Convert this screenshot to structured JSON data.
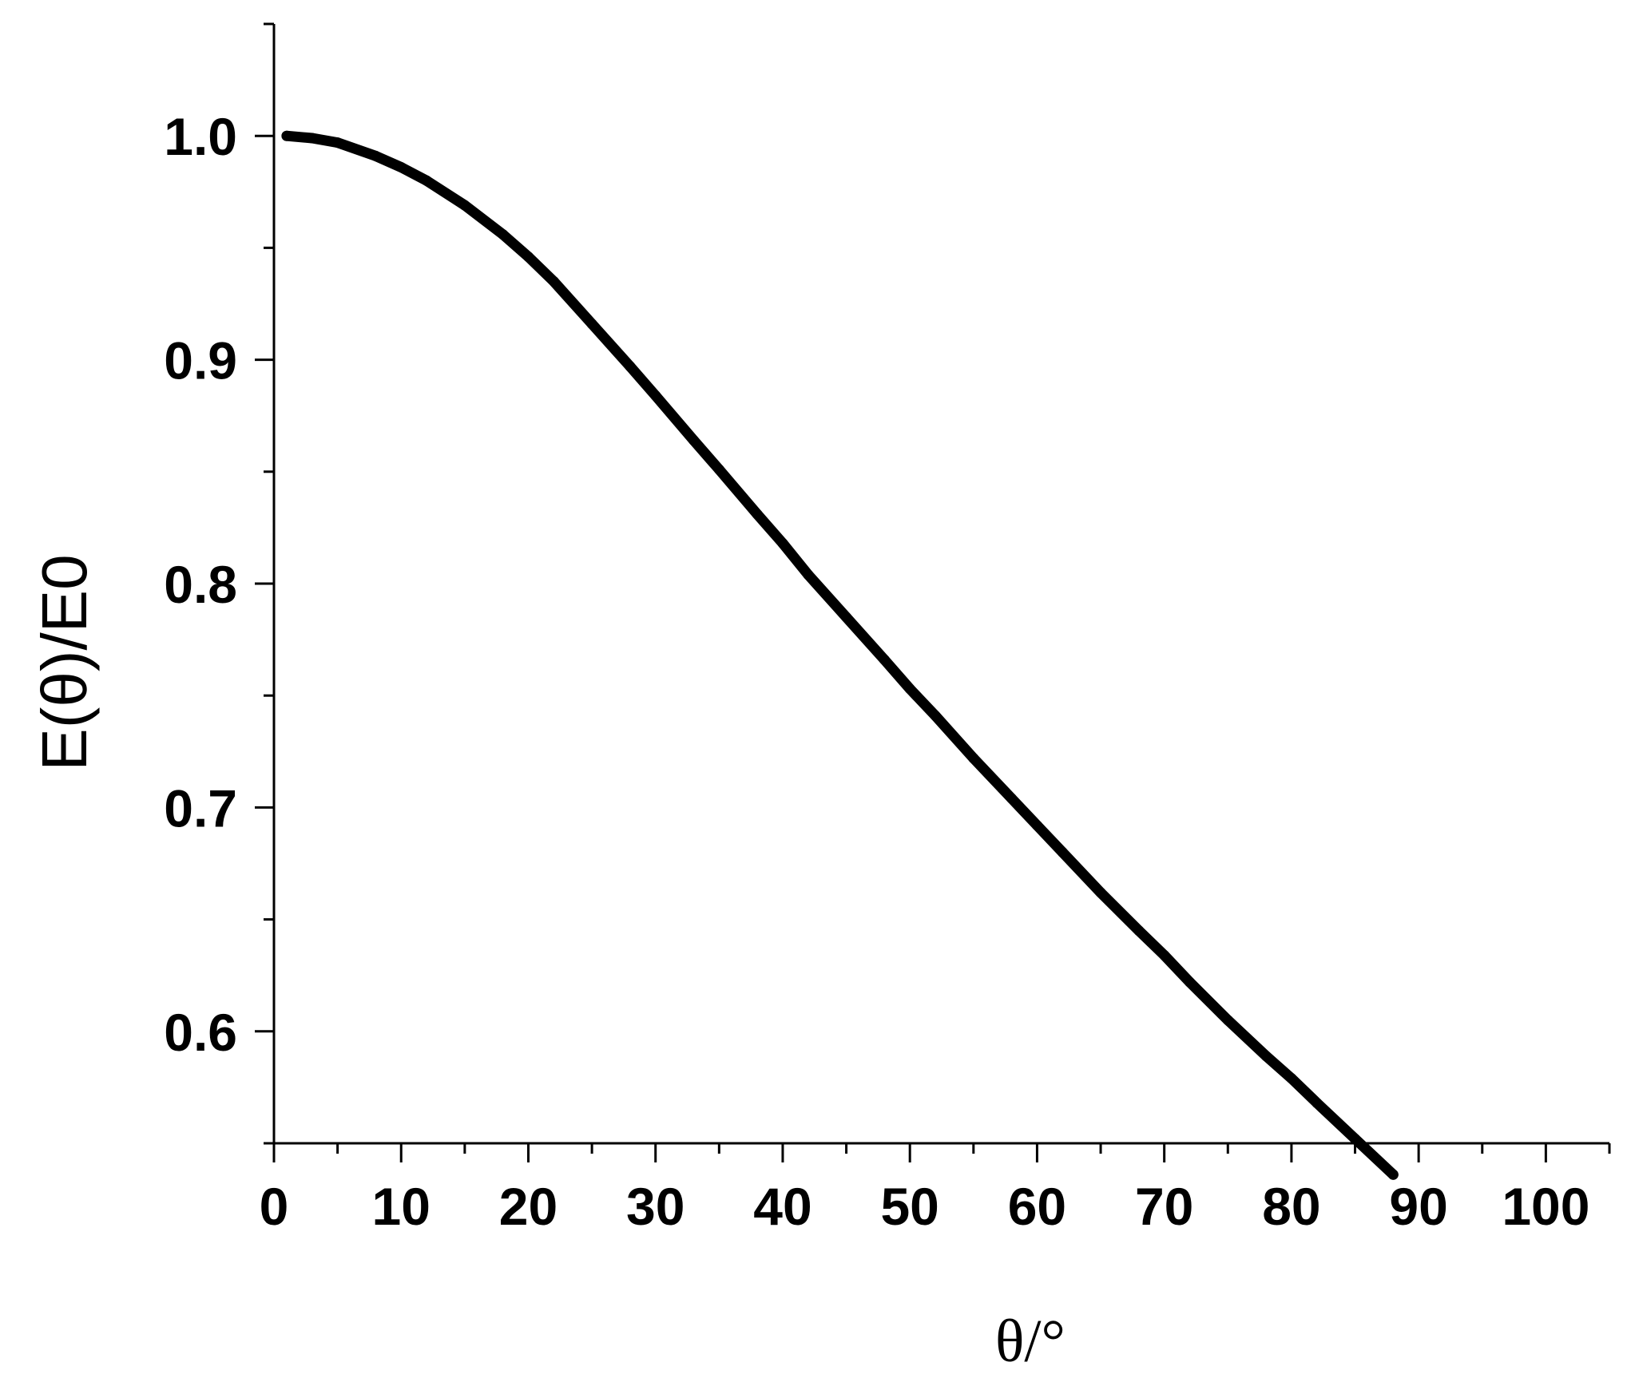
{
  "chart_data": {
    "type": "line",
    "title": "",
    "xlabel": "θ/°",
    "ylabel": "E(θ)/E0",
    "xlim": [
      0,
      105
    ],
    "ylim": [
      0.55,
      1.05
    ],
    "x_ticks": [
      0,
      10,
      20,
      30,
      40,
      50,
      60,
      70,
      80,
      90,
      100
    ],
    "x_tick_labels": [
      "0",
      "10",
      "20",
      "30",
      "40",
      "50",
      "60",
      "70",
      "80",
      "90",
      "100"
    ],
    "y_ticks": [
      0.6,
      0.7,
      0.8,
      0.9,
      1.0
    ],
    "y_tick_labels": [
      "0.6",
      "0.7",
      "0.8",
      "0.9",
      "1.0"
    ],
    "grid": false,
    "legend": "none",
    "series": [
      {
        "color": "#000000",
        "x": [
          1,
          3,
          5,
          8,
          10,
          12,
          15,
          18,
          20,
          22,
          25,
          28,
          30,
          33,
          35,
          38,
          40,
          42,
          45,
          48,
          50,
          52,
          55,
          58,
          60,
          62,
          65,
          68,
          70,
          72,
          75,
          78,
          80,
          82,
          85,
          88
        ],
        "y": [
          1.0,
          0.999,
          0.997,
          0.991,
          0.986,
          0.98,
          0.969,
          0.956,
          0.946,
          0.935,
          0.916,
          0.897,
          0.884,
          0.864,
          0.851,
          0.831,
          0.818,
          0.804,
          0.785,
          0.766,
          0.753,
          0.741,
          0.722,
          0.704,
          0.692,
          0.68,
          0.662,
          0.645,
          0.634,
          0.622,
          0.605,
          0.589,
          0.579,
          0.568,
          0.552,
          0.536
        ]
      }
    ]
  }
}
